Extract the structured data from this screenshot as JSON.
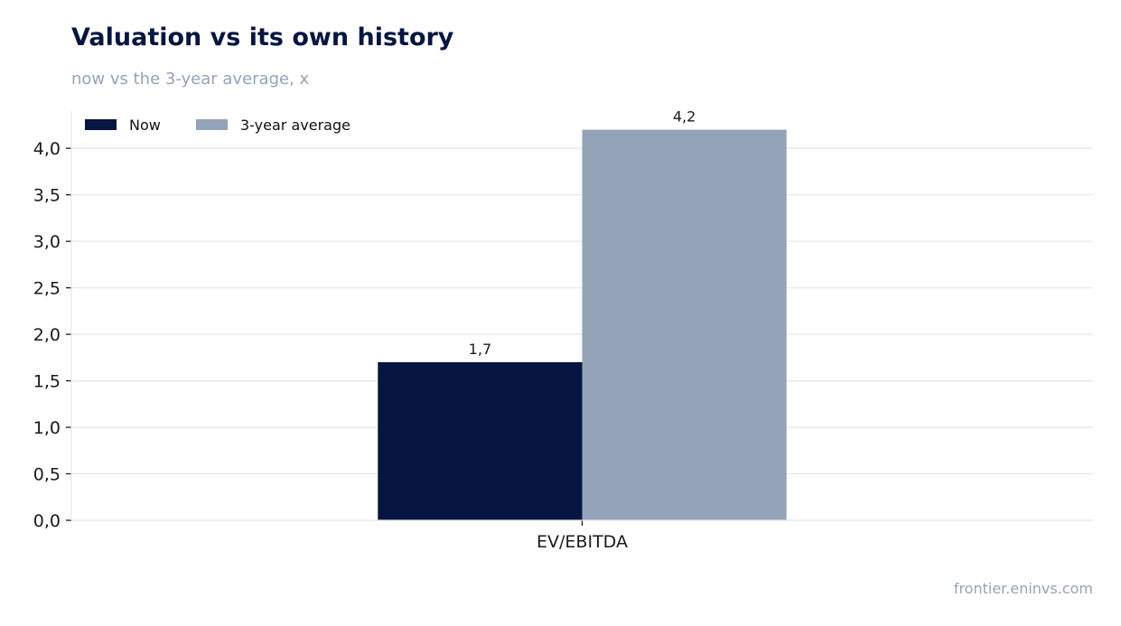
{
  "header": {
    "title": "Valuation vs its own history",
    "subtitle": "now vs the 3-year average, x"
  },
  "footer": {
    "source": "frontier.eninvs.com"
  },
  "colors": {
    "now": "#071640",
    "avg": "#94a3b8",
    "grid": "#e5e7eb",
    "axis": "#1a1a1a"
  },
  "chart_data": {
    "type": "bar",
    "title": "Valuation vs its own history",
    "subtitle": "now vs the 3-year average, x",
    "categories": [
      "EV/EBITDA"
    ],
    "series": [
      {
        "name": "Now",
        "values": [
          1.7
        ],
        "labels": [
          "1,7"
        ],
        "color": "#071640"
      },
      {
        "name": "3-year average",
        "values": [
          4.2
        ],
        "labels": [
          "4,2"
        ],
        "color": "#94a3b8"
      }
    ],
    "ylim": [
      0,
      4.4
    ],
    "yticks": [
      0,
      0.5,
      1.0,
      1.5,
      2.0,
      2.5,
      3.0,
      3.5,
      4.0
    ],
    "ytick_labels": [
      "0,0",
      "0,5",
      "1,0",
      "1,5",
      "2,0",
      "2,5",
      "3,0",
      "3,5",
      "4,0"
    ],
    "xlabel": "",
    "ylabel": "",
    "grid": "horizontal",
    "legend": "top-left"
  }
}
